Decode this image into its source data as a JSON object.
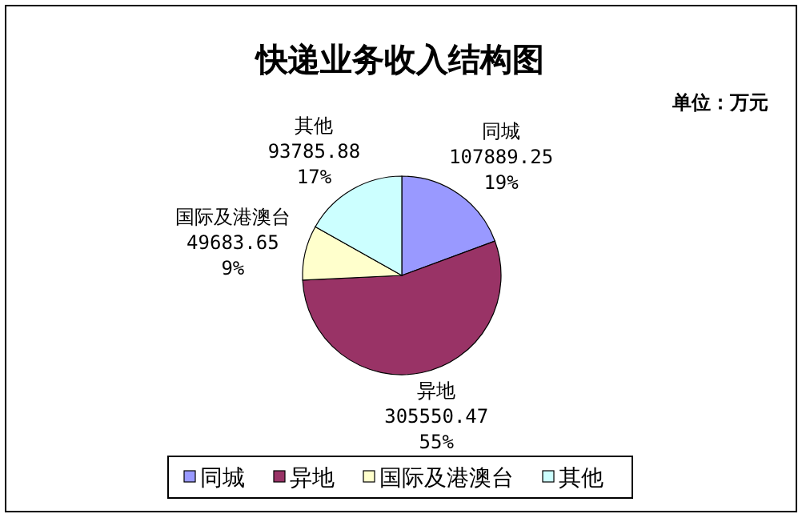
{
  "chart_data": {
    "type": "pie",
    "title": "快递业务收入结构图",
    "annotations": [
      "单位：万元"
    ],
    "categories": [
      "同城",
      "异地",
      "国际及港澳台",
      "其他"
    ],
    "values": [
      107889.25,
      305550.47,
      49683.65,
      93785.88
    ],
    "value_labels": [
      "107889.25\n19%",
      "305550.47\n55%",
      "49683.65\n9%",
      "93785.88\n17%"
    ],
    "colors": [
      "#9999ff",
      "#993366",
      "#ffffcc",
      "#ccffff"
    ],
    "legend": "bottom"
  }
}
